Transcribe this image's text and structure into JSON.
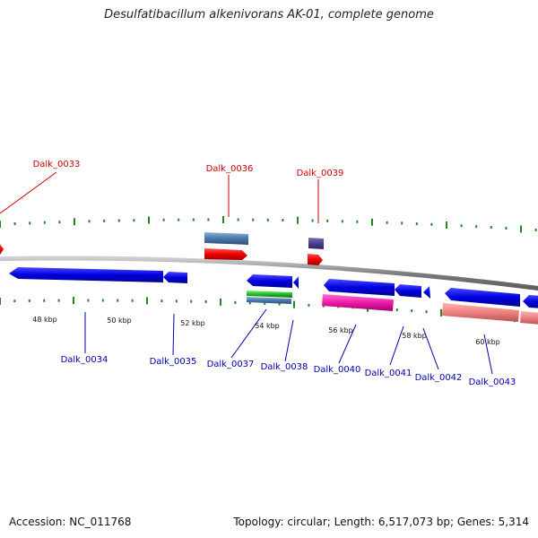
{
  "title": "Desulfatibacillum alkenivorans AK-01, complete genome",
  "accession": "Accession: NC_011768",
  "summary": "Topology: circular; Length: 6,517,073 bp; Genes: 5,314",
  "colors": {
    "forward_label": "#cc0000",
    "reverse_label": "#0000aa",
    "backbone": "#888888",
    "tick": "#228822"
  },
  "scale_labels": [
    {
      "text": "48 kbp",
      "kbp": 48
    },
    {
      "text": "50 kbp",
      "kbp": 50
    },
    {
      "text": "52 kbp",
      "kbp": 52
    },
    {
      "text": "54 kbp",
      "kbp": 54
    },
    {
      "text": "56 kbp",
      "kbp": 56
    },
    {
      "text": "58 kbp",
      "kbp": 58
    },
    {
      "text": "60 kbp",
      "kbp": 60
    }
  ],
  "gene_labels": {
    "forward": [
      "Dalk_0033",
      "Dalk_0036",
      "Dalk_0039"
    ],
    "reverse": [
      "Dalk_0034",
      "Dalk_0035",
      "Dalk_0037",
      "Dalk_0038",
      "Dalk_0040",
      "Dalk_0041",
      "Dalk_0042",
      "Dalk_0043"
    ]
  }
}
